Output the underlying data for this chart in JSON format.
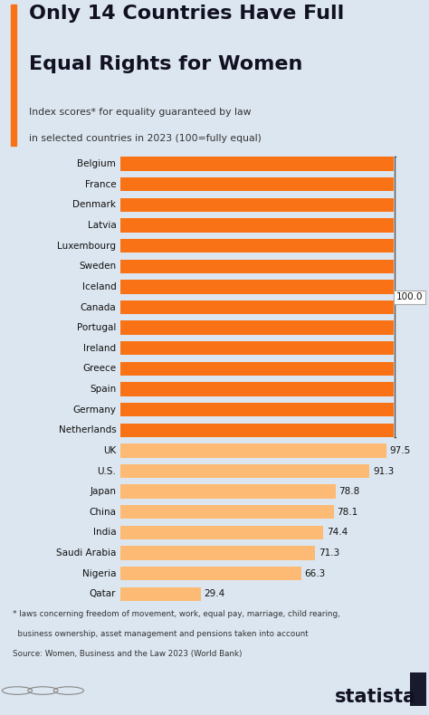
{
  "title_line1": "Only 14 Countries Have Full",
  "title_line2": "Equal Rights for Women",
  "subtitle": "Index scores* for equality guaranteed by law\nin selected countries in 2023 (100 = fullly equal)",
  "subtitle2": "in selected countries in 2023 (100=fully equal)",
  "countries": [
    "Belgium",
    "France",
    "Denmark",
    "Latvia",
    "Luxembourg",
    "Sweden",
    "Iceland",
    "Canada",
    "Portugal",
    "Ireland",
    "Greece",
    "Spain",
    "Germany",
    "Netherlands",
    "UK",
    "U.S.",
    "Japan",
    "China",
    "India",
    "Saudi Arabia",
    "Nigeria",
    "Qatar"
  ],
  "values": [
    100.0,
    100.0,
    100.0,
    100.0,
    100.0,
    100.0,
    100.0,
    100.0,
    100.0,
    100.0,
    100.0,
    100.0,
    100.0,
    100.0,
    97.5,
    91.3,
    78.8,
    78.1,
    74.4,
    71.3,
    66.3,
    29.4
  ],
  "bar_color_full": "#F97316",
  "bar_color_partial": "#FDBA74",
  "bg_color": "#dce6f0",
  "title_color": "#111122",
  "subtitle_color": "#333333",
  "accent_color": "#F97316",
  "footnote_line1": "* laws concerning freedom of movement, work, equal pay, marriage, child rearing,",
  "footnote_line2": "  business ownership, asset management and pensions taken into account",
  "footnote_line3": "Source: Women, Business and the Law 2023 (World Bank)",
  "full_threshold": 100.0
}
